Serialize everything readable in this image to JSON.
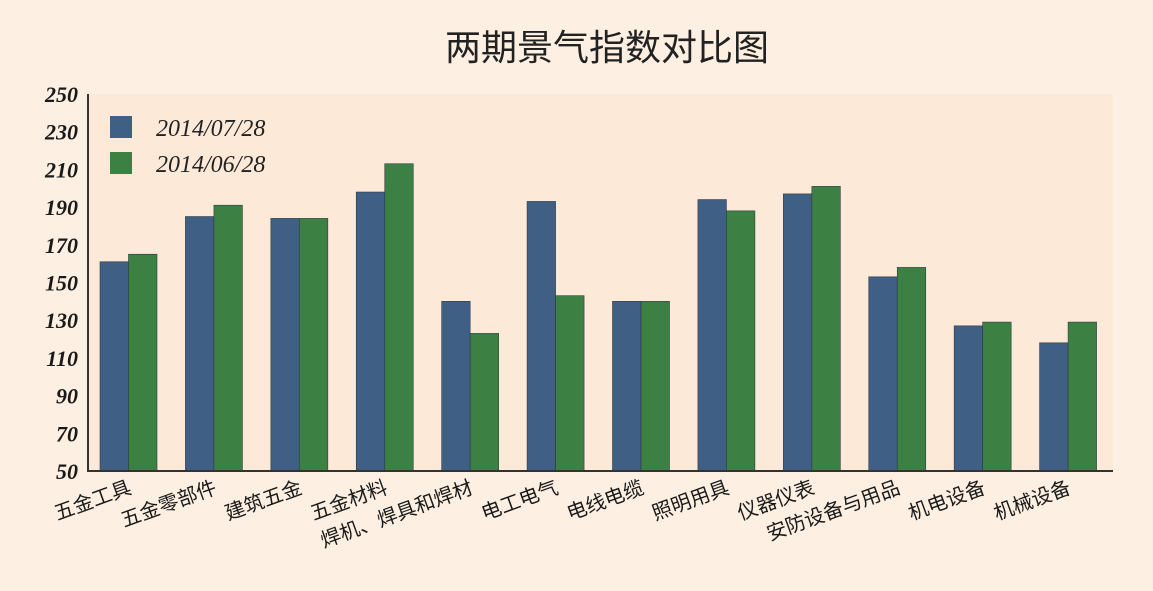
{
  "chart_data": {
    "type": "bar",
    "title": "两期景气指数对比图",
    "categories": [
      "五金工具",
      "五金零部件",
      "建筑五金",
      "五金材料",
      "焊机、焊具和焊材",
      "电工电气",
      "电线电缆",
      "照明用具",
      "仪器仪表",
      "安防设备与用品",
      "机电设备",
      "机械设备"
    ],
    "series": [
      {
        "name": "2014/07/28",
        "color": "#3f5f85",
        "values": [
          161,
          185,
          184,
          198,
          140,
          193,
          140,
          194,
          197,
          153,
          127,
          118
        ]
      },
      {
        "name": "2014/06/28",
        "color": "#3c8044",
        "values": [
          165,
          191,
          184,
          213,
          123,
          143,
          140,
          188,
          201,
          158,
          129,
          129
        ]
      }
    ],
    "ylim": [
      50,
      250
    ],
    "yticks": [
      "250",
      "230",
      "210",
      "190",
      "170",
      "150",
      "130",
      "110",
      "90",
      "70",
      "50"
    ],
    "legend_position": "top-left",
    "grid": false,
    "plot_background": "#fde9d7"
  }
}
